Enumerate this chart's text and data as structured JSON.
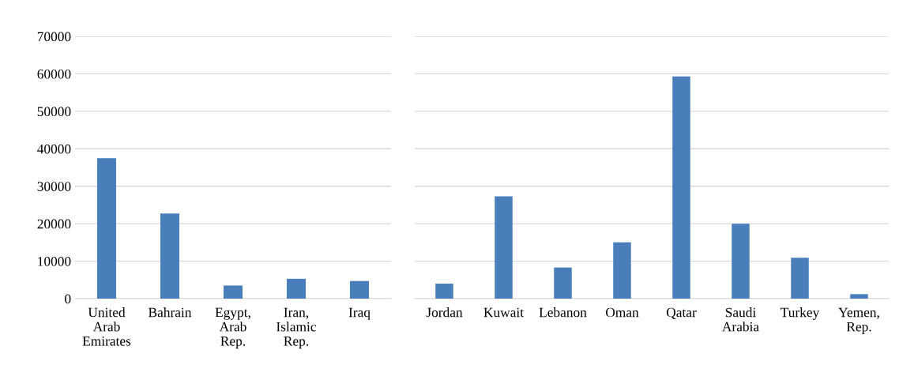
{
  "chart_data": [
    {
      "type": "bar",
      "categories": [
        "United Arab Emirates",
        "Bahrain",
        "Egypt, Arab Rep.",
        "Iran, Islamic Rep.",
        "Iraq"
      ],
      "values": [
        37500,
        22700,
        3500,
        5300,
        4700
      ],
      "color": "#4a7ebb",
      "ylim": [
        0,
        70000
      ],
      "yticks": [
        0,
        10000,
        20000,
        30000,
        40000,
        50000,
        60000,
        70000
      ],
      "grid": "y"
    },
    {
      "type": "bar",
      "categories": [
        "Jordan",
        "Kuwait",
        "Lebanon",
        "Oman",
        "Qatar",
        "Saudi Arabia",
        "Turkey",
        "Yemen, Rep."
      ],
      "values": [
        4000,
        27300,
        8300,
        15000,
        59300,
        20000,
        10900,
        1200
      ],
      "color": "#4a7ebb",
      "ylim": [
        0,
        70000
      ],
      "yticks": [
        0,
        10000,
        20000,
        30000,
        40000,
        50000,
        60000,
        70000
      ],
      "grid": "y",
      "tick_labels": "x"
    }
  ]
}
